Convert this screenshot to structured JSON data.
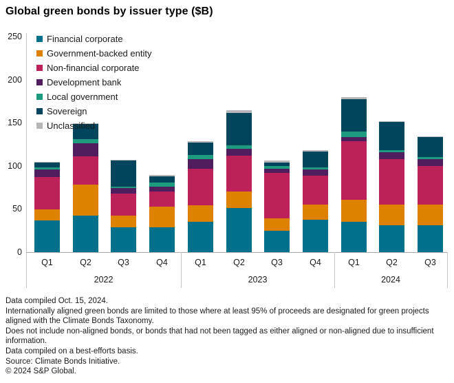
{
  "title": "Global green bonds by issuer type ($B)",
  "chart_data": {
    "type": "bar",
    "stacked": true,
    "title": "Global green bonds by issuer type ($B)",
    "xlabel": "",
    "ylabel": "",
    "ylim": [
      0,
      250
    ],
    "yticks": [
      0,
      50,
      100,
      150,
      200,
      250
    ],
    "grid": false,
    "legend_position": "top-left",
    "categories": [
      "Q1",
      "Q2",
      "Q3",
      "Q4",
      "Q1",
      "Q2",
      "Q3",
      "Q4",
      "Q1",
      "Q2",
      "Q3"
    ],
    "groups": [
      {
        "label": "2022",
        "count": 4
      },
      {
        "label": "2023",
        "count": 4
      },
      {
        "label": "2024",
        "count": 3
      }
    ],
    "series": [
      {
        "name": "Financial corporate",
        "color": "#00708c",
        "values": [
          37,
          42,
          28.5,
          28.5,
          35.5,
          51.5,
          24.5,
          37.5,
          35,
          31.5,
          31
        ]
      },
      {
        "name": "Government-backed entity",
        "color": "#de8000",
        "values": [
          12.5,
          36,
          13.5,
          24.5,
          18.5,
          18.5,
          14.5,
          17.5,
          25.5,
          24,
          24.5
        ]
      },
      {
        "name": "Non-financial corporate",
        "color": "#bc2159",
        "values": [
          37.5,
          33,
          25.5,
          17.5,
          43,
          42,
          52.5,
          33.5,
          68,
          52,
          44
        ]
      },
      {
        "name": "Development bank",
        "color": "#501e5f",
        "values": [
          8.5,
          15,
          7,
          5.5,
          10.5,
          8,
          5,
          7,
          5,
          8.5,
          8
        ]
      },
      {
        "name": "Local government",
        "color": "#1d9c80",
        "values": [
          2.5,
          5,
          1,
          5,
          5,
          4,
          3,
          2.5,
          6.5,
          2.5,
          3
        ]
      },
      {
        "name": "Sovereign",
        "color": "#00455c",
        "values": [
          6,
          17.5,
          30.5,
          7,
          14.5,
          37.5,
          4,
          18.5,
          37.5,
          32.5,
          23.5
        ]
      },
      {
        "name": "Unclassified",
        "color": "#b5b7b9",
        "values": [
          1,
          1,
          1,
          1.5,
          1.5,
          3,
          3,
          2,
          2,
          1,
          0.5
        ]
      }
    ]
  },
  "footnotes": {
    "lines": [
      "Data compiled Oct. 15, 2024.",
      "Internationally aligned green bonds are limited to those where at least 95% of proceeds are designated for green projects aligned with the Climate Bonds Taxonomy.",
      "Does not include non-aligned bonds, or bonds that had not been tagged as either aligned or non-aligned due to insufficient information.",
      "Data compiled on a best-efforts basis.",
      "Source: Climate Bonds Initiative.",
      "© 2024 S&P Global."
    ]
  }
}
